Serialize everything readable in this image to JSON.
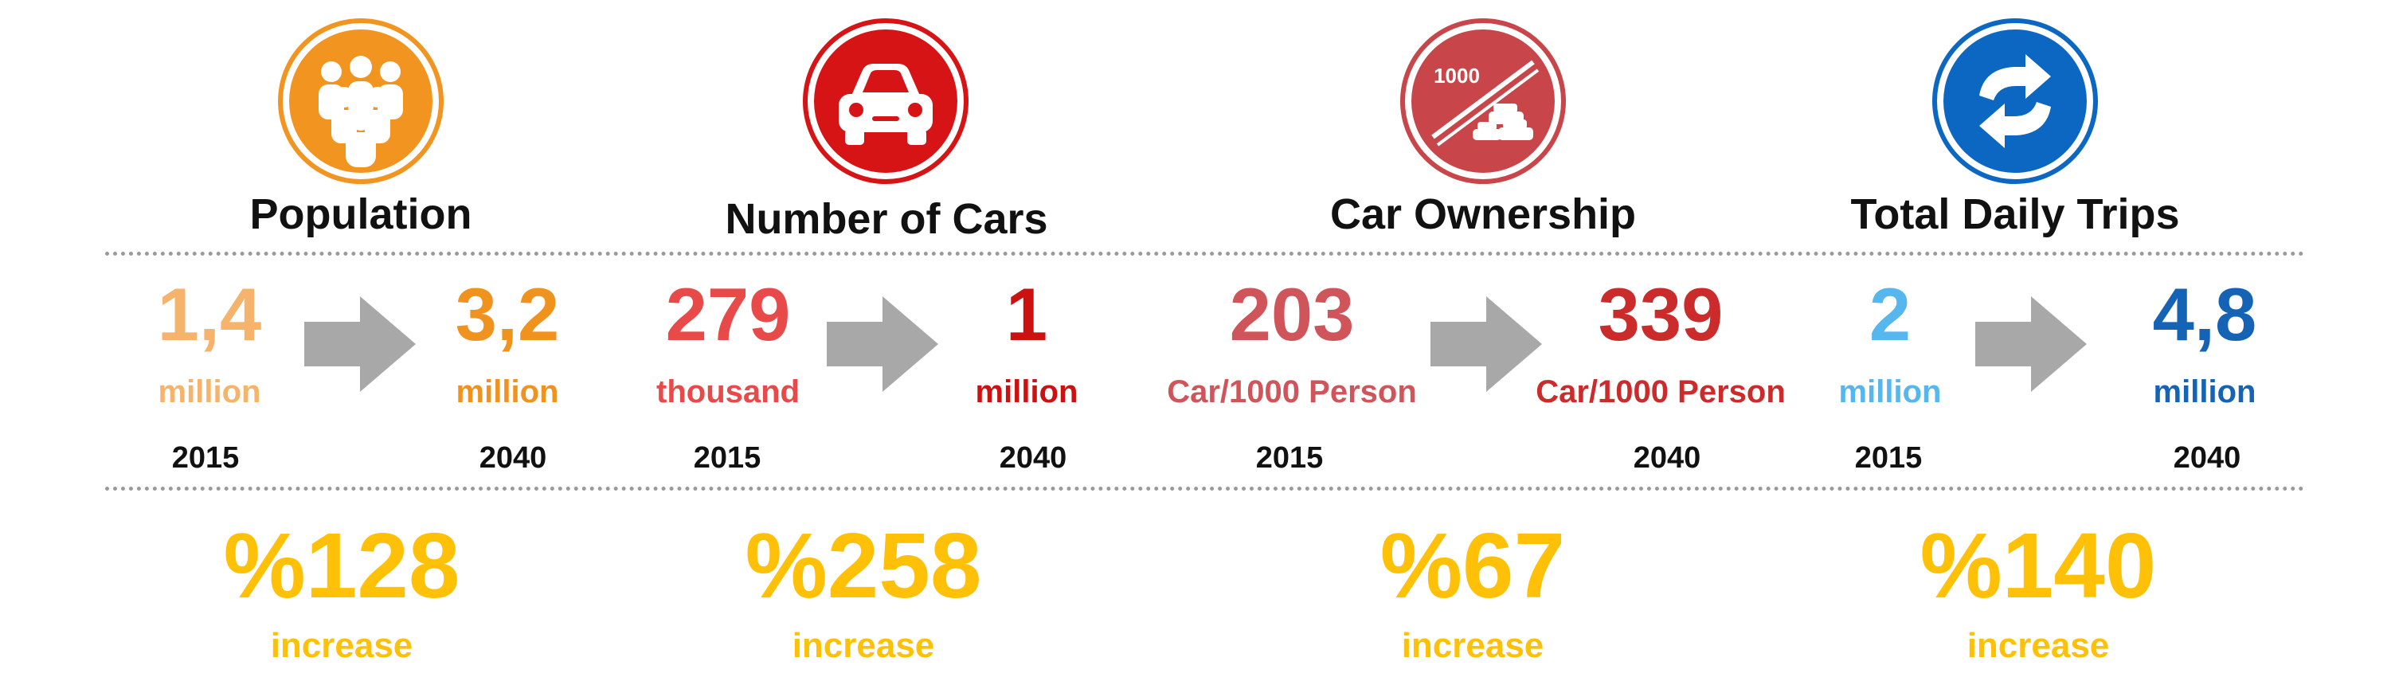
{
  "sections": [
    {
      "title": "Population",
      "from": {
        "value": "1,4",
        "unit": "million",
        "year": "2015",
        "color": "#f6b36c"
      },
      "to": {
        "value": "3,2",
        "unit": "million",
        "year": "2040",
        "color": "#f0931e"
      },
      "change": {
        "value": "%128",
        "label": "increase"
      },
      "icon": "people-group-icon",
      "icon_color": "#f29420"
    },
    {
      "title": "Number of Cars",
      "from": {
        "value": "279",
        "unit": "thousand",
        "year": "2015",
        "color": "#e84a4a"
      },
      "to": {
        "value": "1",
        "unit": "million",
        "year": "2040",
        "color": "#cc1111"
      },
      "change": {
        "value": "%258",
        "label": "increase"
      },
      "icon": "car-icon",
      "icon_color": "#d61415"
    },
    {
      "title": "Car Ownership",
      "from": {
        "value": "203",
        "unit": "Car/1000 Person",
        "year": "2015",
        "color": "#d0555a"
      },
      "to": {
        "value": "339",
        "unit": "Car/1000 Person",
        "year": "2040",
        "color": "#cc2b2b"
      },
      "change": {
        "value": "%67",
        "label": "increase"
      },
      "icon": "cars-per-1000-icon",
      "icon_text": "1000",
      "icon_color": "#c84649"
    },
    {
      "title": "Total Daily Trips",
      "from": {
        "value": "2",
        "unit": "million",
        "year": "2015",
        "color": "#56b6ee"
      },
      "to": {
        "value": "4,8",
        "unit": "million",
        "year": "2040",
        "color": "#1463b5"
      },
      "change": {
        "value": "%140",
        "label": "increase"
      },
      "icon": "refresh-arrows-icon",
      "icon_color": "#0b67c1"
    }
  ]
}
